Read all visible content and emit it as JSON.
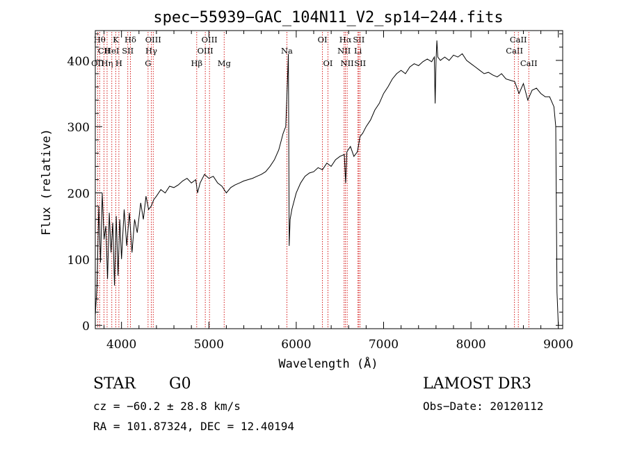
{
  "chart_data": {
    "type": "line",
    "title": "spec−55939−GAC_104N11_V2_sp14−244.fits",
    "xlabel": "Wavelength (Å)",
    "ylabel": "Flux (relative)",
    "xlim": [
      3700,
      9050
    ],
    "ylim": [
      -5,
      445
    ],
    "xticks": [
      4000,
      5000,
      6000,
      7000,
      8000,
      9000
    ],
    "yticks": [
      0,
      100,
      200,
      300,
      400
    ],
    "series": [
      {
        "name": "spectrum",
        "points": [
          [
            3700,
            15
          ],
          [
            3720,
            60
          ],
          [
            3740,
            180
          ],
          [
            3760,
            95
          ],
          [
            3780,
            200
          ],
          [
            3800,
            130
          ],
          [
            3820,
            150
          ],
          [
            3840,
            70
          ],
          [
            3860,
            170
          ],
          [
            3880,
            110
          ],
          [
            3900,
            155
          ],
          [
            3920,
            60
          ],
          [
            3940,
            165
          ],
          [
            3960,
            75
          ],
          [
            3980,
            160
          ],
          [
            4000,
            100
          ],
          [
            4030,
            175
          ],
          [
            4060,
            120
          ],
          [
            4090,
            170
          ],
          [
            4120,
            110
          ],
          [
            4150,
            160
          ],
          [
            4180,
            140
          ],
          [
            4220,
            185
          ],
          [
            4250,
            160
          ],
          [
            4280,
            195
          ],
          [
            4310,
            175
          ],
          [
            4340,
            180
          ],
          [
            4370,
            190
          ],
          [
            4400,
            195
          ],
          [
            4450,
            205
          ],
          [
            4500,
            200
          ],
          [
            4550,
            210
          ],
          [
            4600,
            208
          ],
          [
            4650,
            212
          ],
          [
            4700,
            218
          ],
          [
            4750,
            222
          ],
          [
            4800,
            215
          ],
          [
            4850,
            220
          ],
          [
            4870,
            200
          ],
          [
            4900,
            215
          ],
          [
            4950,
            228
          ],
          [
            5000,
            222
          ],
          [
            5050,
            225
          ],
          [
            5100,
            215
          ],
          [
            5150,
            210
          ],
          [
            5200,
            200
          ],
          [
            5250,
            208
          ],
          [
            5300,
            212
          ],
          [
            5350,
            215
          ],
          [
            5400,
            218
          ],
          [
            5450,
            220
          ],
          [
            5500,
            222
          ],
          [
            5550,
            225
          ],
          [
            5600,
            228
          ],
          [
            5650,
            232
          ],
          [
            5700,
            240
          ],
          [
            5750,
            250
          ],
          [
            5800,
            265
          ],
          [
            5850,
            290
          ],
          [
            5880,
            300
          ],
          [
            5900,
            370
          ],
          [
            5910,
            410
          ],
          [
            5920,
            120
          ],
          [
            5930,
            160
          ],
          [
            5950,
            175
          ],
          [
            6000,
            200
          ],
          [
            6050,
            215
          ],
          [
            6100,
            225
          ],
          [
            6150,
            230
          ],
          [
            6200,
            232
          ],
          [
            6250,
            238
          ],
          [
            6300,
            235
          ],
          [
            6350,
            245
          ],
          [
            6400,
            240
          ],
          [
            6450,
            250
          ],
          [
            6500,
            255
          ],
          [
            6550,
            258
          ],
          [
            6565,
            215
          ],
          [
            6580,
            262
          ],
          [
            6620,
            270
          ],
          [
            6660,
            255
          ],
          [
            6700,
            262
          ],
          [
            6730,
            285
          ],
          [
            6760,
            290
          ],
          [
            6800,
            300
          ],
          [
            6850,
            310
          ],
          [
            6900,
            325
          ],
          [
            6950,
            335
          ],
          [
            7000,
            350
          ],
          [
            7050,
            360
          ],
          [
            7100,
            372
          ],
          [
            7150,
            380
          ],
          [
            7200,
            385
          ],
          [
            7250,
            380
          ],
          [
            7300,
            390
          ],
          [
            7350,
            395
          ],
          [
            7400,
            392
          ],
          [
            7450,
            398
          ],
          [
            7500,
            402
          ],
          [
            7550,
            398
          ],
          [
            7580,
            405
          ],
          [
            7590,
            335
          ],
          [
            7600,
            400
          ],
          [
            7610,
            430
          ],
          [
            7620,
            405
          ],
          [
            7650,
            400
          ],
          [
            7700,
            405
          ],
          [
            7750,
            400
          ],
          [
            7800,
            408
          ],
          [
            7850,
            405
          ],
          [
            7900,
            410
          ],
          [
            7950,
            400
          ],
          [
            8000,
            395
          ],
          [
            8050,
            390
          ],
          [
            8100,
            385
          ],
          [
            8150,
            380
          ],
          [
            8200,
            382
          ],
          [
            8250,
            378
          ],
          [
            8300,
            375
          ],
          [
            8350,
            380
          ],
          [
            8400,
            372
          ],
          [
            8450,
            370
          ],
          [
            8500,
            368
          ],
          [
            8550,
            350
          ],
          [
            8600,
            365
          ],
          [
            8650,
            340
          ],
          [
            8700,
            355
          ],
          [
            8750,
            358
          ],
          [
            8800,
            350
          ],
          [
            8850,
            345
          ],
          [
            8900,
            345
          ],
          [
            8950,
            330
          ],
          [
            8970,
            300
          ],
          [
            8985,
            50
          ],
          [
            9000,
            0
          ]
        ]
      }
    ],
    "line_markers": [
      {
        "wavelength": 3750,
        "label": "Hθ",
        "row": 0
      },
      {
        "wavelength": 3727,
        "label": "OII",
        "row": 2
      },
      {
        "wavelength": 3800,
        "label": "CII",
        "row": 1
      },
      {
        "wavelength": 3835,
        "label": "Hη",
        "row": 2
      },
      {
        "wavelength": 3889,
        "label": "HeI",
        "row": 1
      },
      {
        "wavelength": 3934,
        "label": "K",
        "row": 0
      },
      {
        "wavelength": 3970,
        "label": "H",
        "row": 2
      },
      {
        "wavelength": 4072,
        "label": "SII",
        "row": 1
      },
      {
        "wavelength": 4102,
        "label": "Hδ",
        "row": 0
      },
      {
        "wavelength": 4304,
        "label": "G",
        "row": 2
      },
      {
        "wavelength": 4341,
        "label": "Hγ",
        "row": 1
      },
      {
        "wavelength": 4363,
        "label": "OIII",
        "row": 0
      },
      {
        "wavelength": 4861,
        "label": "Hβ",
        "row": 2
      },
      {
        "wavelength": 4959,
        "label": "OIII",
        "row": 1
      },
      {
        "wavelength": 5007,
        "label": "OIII",
        "row": 0
      },
      {
        "wavelength": 5175,
        "label": "Mg",
        "row": 2
      },
      {
        "wavelength": 5893,
        "label": "Na",
        "row": 1
      },
      {
        "wavelength": 6300,
        "label": "OI",
        "row": 0
      },
      {
        "wavelength": 6363,
        "label": "OI",
        "row": 2
      },
      {
        "wavelength": 6548,
        "label": "NII",
        "row": 1
      },
      {
        "wavelength": 6563,
        "label": "Hα",
        "row": 0
      },
      {
        "wavelength": 6583,
        "label": "NII",
        "row": 2
      },
      {
        "wavelength": 6707,
        "label": "Li",
        "row": 1
      },
      {
        "wavelength": 6716,
        "label": "SII",
        "row": 0
      },
      {
        "wavelength": 6731,
        "label": "SII",
        "row": 2
      },
      {
        "wavelength": 8498,
        "label": "CaII",
        "row": 1
      },
      {
        "wavelength": 8542,
        "label": "CaII",
        "row": 0
      },
      {
        "wavelength": 8662,
        "label": "CaII",
        "row": 2
      }
    ]
  },
  "info": {
    "object_class": "STAR",
    "subclass": "G0",
    "survey": "LAMOST DR3",
    "redshift": "cz = −60.2 ± 28.8 km/s",
    "obs_date": "Obs−Date: 20120112",
    "coords": "RA = 101.87324, DEC =  12.40194"
  }
}
